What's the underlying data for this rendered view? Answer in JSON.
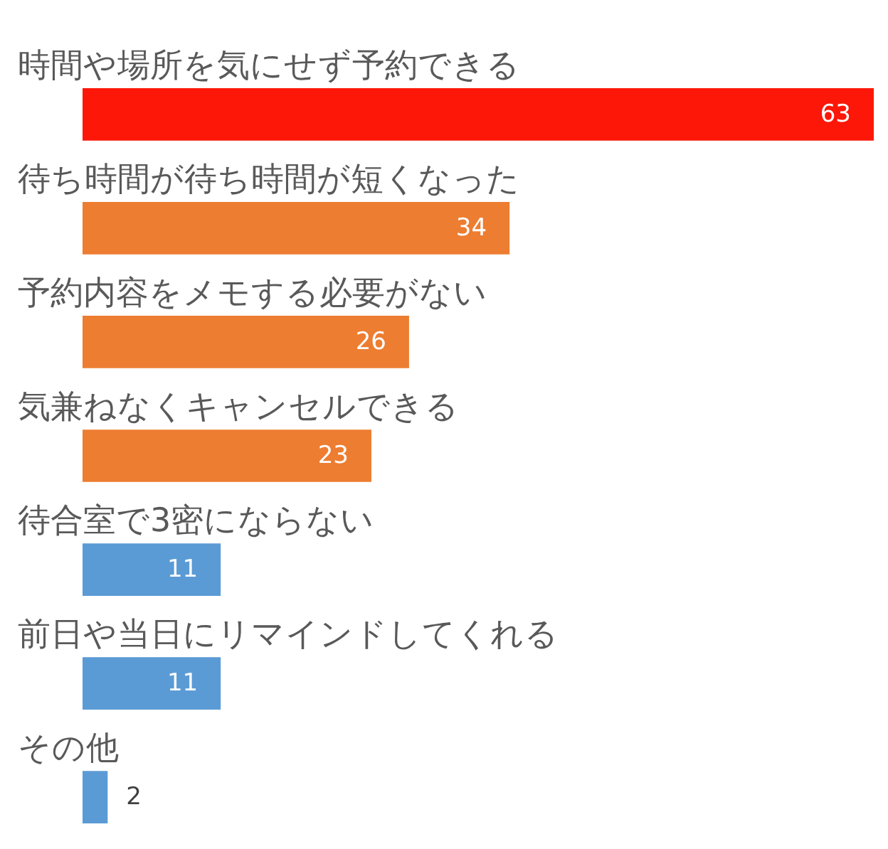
{
  "chart_data": {
    "type": "bar",
    "orientation": "horizontal",
    "categories": [
      "時間や場所を気にせず予約できる",
      "待ち時間が待ち時間が短くなった",
      "予約内容をメモする必要がない",
      "気兼ねなくキャンセルできる",
      "待合室で3密にならない",
      "前日や当日にリマインドしてくれる",
      "その他"
    ],
    "values": [
      63,
      34,
      26,
      23,
      11,
      11,
      2
    ],
    "colors": [
      "#fc1708",
      "#ed7d31",
      "#ed7d31",
      "#ed7d31",
      "#5b9bd5",
      "#5b9bd5",
      "#5b9bd5"
    ],
    "data_labels": true
  }
}
